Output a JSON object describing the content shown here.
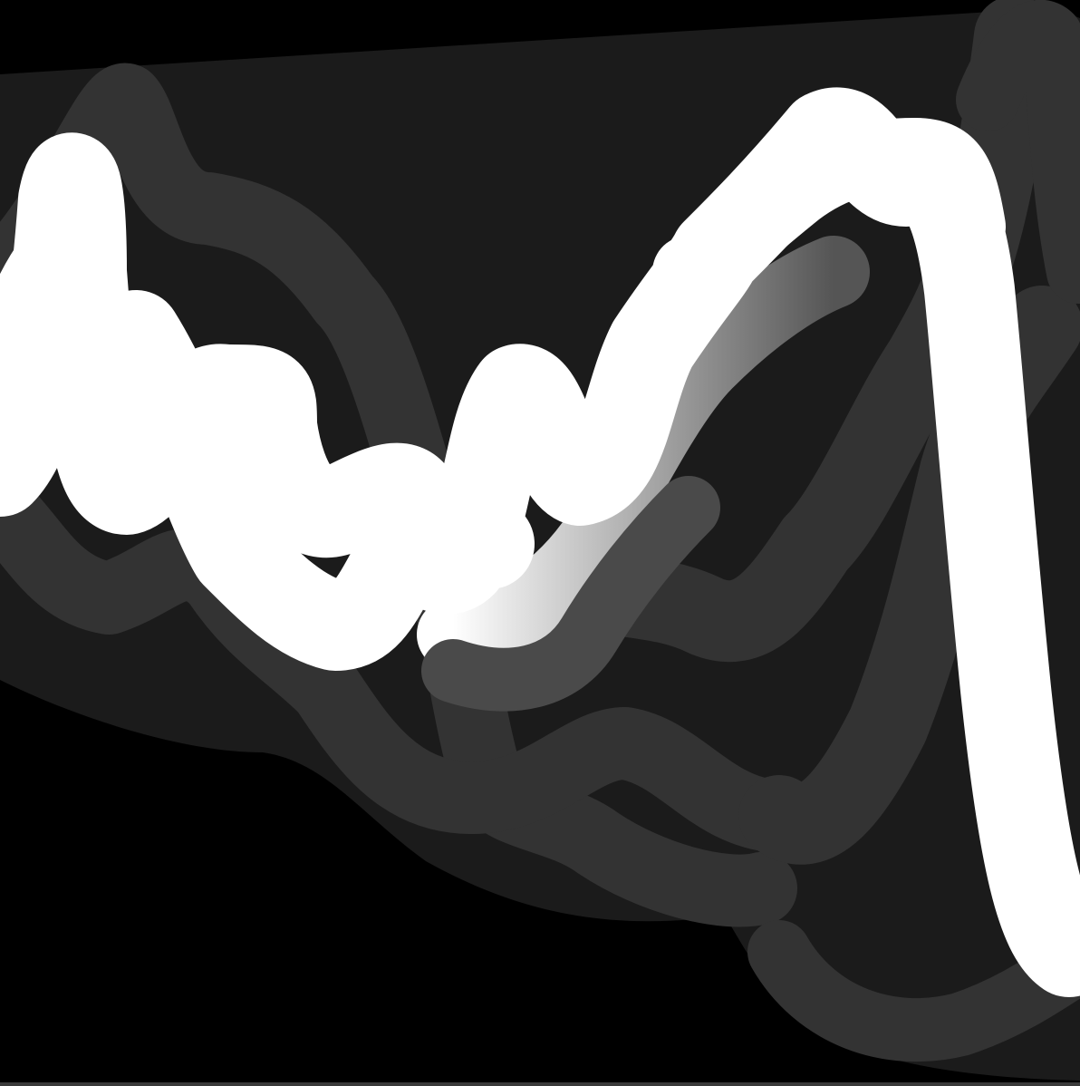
{
  "colors": {
    "background": "#000000",
    "panel": "#1b1b1b",
    "stroke_dark": "#333333",
    "stroke_mid": "#4a4a4a",
    "stroke_light": "#ffffff"
  }
}
